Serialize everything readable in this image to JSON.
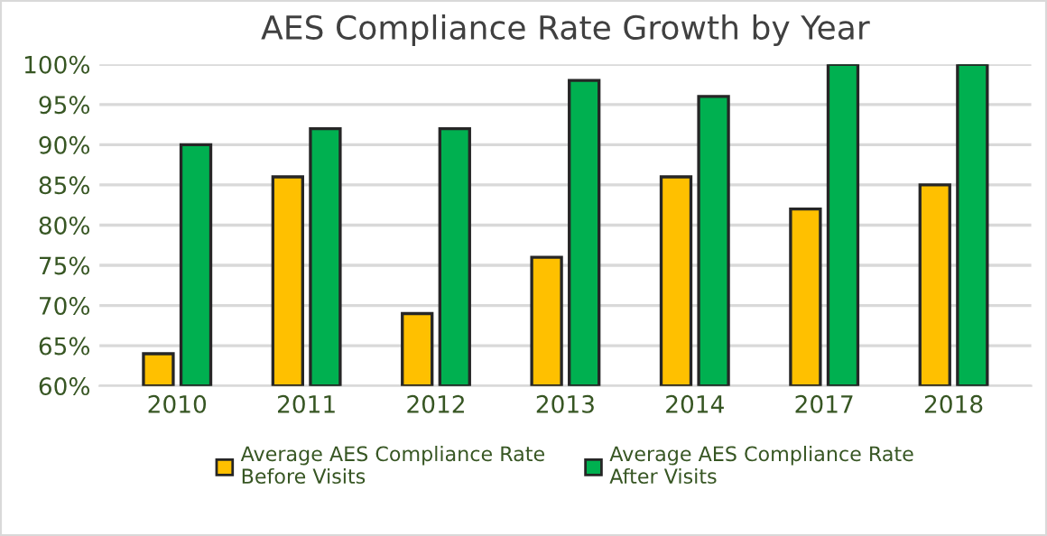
{
  "chart_data": {
    "type": "bar",
    "title": "AES Compliance Rate Growth by Year",
    "categories": [
      "2010",
      "2011",
      "2012",
      "2013",
      "2014",
      "2017",
      "2018"
    ],
    "series": [
      {
        "name": "Average AES Compliance Rate\nBefore Visits",
        "color": "#ffc000",
        "values": [
          64,
          86,
          69,
          76,
          86,
          82,
          85
        ]
      },
      {
        "name": "Average AES Compliance Rate\nAfter Visits",
        "color": "#00b050",
        "values": [
          90,
          92,
          92,
          98,
          96,
          100,
          100
        ]
      }
    ],
    "ylim": [
      60,
      100
    ],
    "yticks": [
      {
        "value": 60,
        "label": "60%"
      },
      {
        "value": 65,
        "label": "65%"
      },
      {
        "value": 70,
        "label": "70%"
      },
      {
        "value": 75,
        "label": "75%"
      },
      {
        "value": 80,
        "label": "80%"
      },
      {
        "value": 85,
        "label": "85%"
      },
      {
        "value": 90,
        "label": "90%"
      },
      {
        "value": 95,
        "label": "95%"
      },
      {
        "value": 100,
        "label": "100%"
      }
    ],
    "grid": "y",
    "legend": "bottom"
  }
}
